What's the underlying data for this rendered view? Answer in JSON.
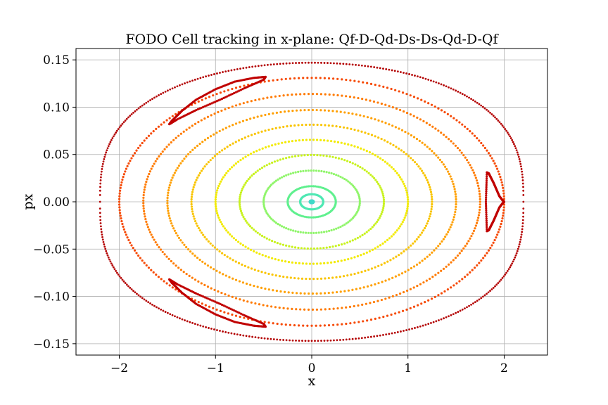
{
  "chart_data": {
    "type": "scatter",
    "title": "FODO Cell tracking in x-plane: Qf-D-Qd-Ds-Ds-Qd-D-Qf",
    "xlabel": "x",
    "ylabel": "px",
    "xlim": [
      -2.45,
      2.45
    ],
    "ylim": [
      -0.162,
      0.162
    ],
    "xticks": [
      -2,
      -1,
      0,
      1,
      2
    ],
    "xtick_labels": [
      "−2",
      "−1",
      "0",
      "1",
      "2"
    ],
    "yticks": [
      -0.15,
      -0.1,
      -0.05,
      0.0,
      0.05,
      0.1,
      0.15
    ],
    "ytick_labels": [
      "−0.15",
      "−0.10",
      "−0.05",
      "0.00",
      "0.05",
      "0.10",
      "0.15"
    ],
    "grid": true,
    "series": [
      {
        "kind": "ellipse",
        "amplitude_x": 0.02,
        "amplitude_px": 0.0014,
        "color": "#40d9c8"
      },
      {
        "kind": "ellipse",
        "amplitude_x": 0.12,
        "amplitude_px": 0.008,
        "color": "#4fe8b3"
      },
      {
        "kind": "ellipse",
        "amplitude_x": 0.25,
        "amplitude_px": 0.0165,
        "color": "#5ff08e"
      },
      {
        "kind": "ellipse",
        "amplitude_x": 0.5,
        "amplitude_px": 0.033,
        "color": "#8ff56a"
      },
      {
        "kind": "ellipse",
        "amplitude_x": 0.75,
        "amplitude_px": 0.0495,
        "color": "#c8f21e"
      },
      {
        "kind": "ellipse",
        "amplitude_x": 1.0,
        "amplitude_px": 0.0655,
        "color": "#f2ea00"
      },
      {
        "kind": "ellipse",
        "amplitude_x": 1.25,
        "amplitude_px": 0.0815,
        "color": "#f9c400"
      },
      {
        "kind": "ellipse",
        "amplitude_x": 1.5,
        "amplitude_px": 0.097,
        "color": "#ff9f00"
      },
      {
        "kind": "ellipse",
        "amplitude_x": 1.75,
        "amplitude_px": 0.114,
        "color": "#ff7a00"
      },
      {
        "kind": "ellipse",
        "amplitude_x": 2.0,
        "amplitude_px": 0.131,
        "color": "#f64a06"
      },
      {
        "kind": "separatrix",
        "amplitude_x": 2.2,
        "amplitude_px": 0.147,
        "color": "#b30000"
      },
      {
        "kind": "island",
        "x": [
          1.82,
          1.84,
          1.86,
          1.89,
          1.92,
          1.95,
          1.98,
          2.0,
          1.98,
          1.95,
          1.92,
          1.89,
          1.86,
          1.84,
          1.82,
          1.81,
          1.82
        ],
        "px": [
          0.031,
          0.03,
          0.026,
          0.02,
          0.013,
          0.006,
          0.002,
          0.0,
          -0.002,
          -0.006,
          -0.013,
          -0.02,
          -0.026,
          -0.03,
          -0.031,
          0.0,
          0.031
        ],
        "color": "#c00000"
      },
      {
        "kind": "island",
        "x": [
          -1.48,
          -1.45,
          -1.35,
          -1.2,
          -1.0,
          -0.8,
          -0.6,
          -0.48,
          -0.5,
          -0.7,
          -0.95,
          -1.2,
          -1.4,
          -1.48
        ],
        "px": [
          0.082,
          0.086,
          0.096,
          0.108,
          0.119,
          0.127,
          0.131,
          0.132,
          0.129,
          0.12,
          0.108,
          0.097,
          0.087,
          0.082
        ],
        "color": "#c00000"
      },
      {
        "kind": "island",
        "x": [
          -1.48,
          -1.45,
          -1.35,
          -1.2,
          -1.0,
          -0.8,
          -0.6,
          -0.48,
          -0.5,
          -0.7,
          -0.95,
          -1.2,
          -1.4,
          -1.48
        ],
        "px": [
          -0.082,
          -0.086,
          -0.096,
          -0.108,
          -0.119,
          -0.127,
          -0.131,
          -0.132,
          -0.129,
          -0.12,
          -0.108,
          -0.097,
          -0.087,
          -0.082
        ],
        "color": "#c00000"
      }
    ]
  }
}
